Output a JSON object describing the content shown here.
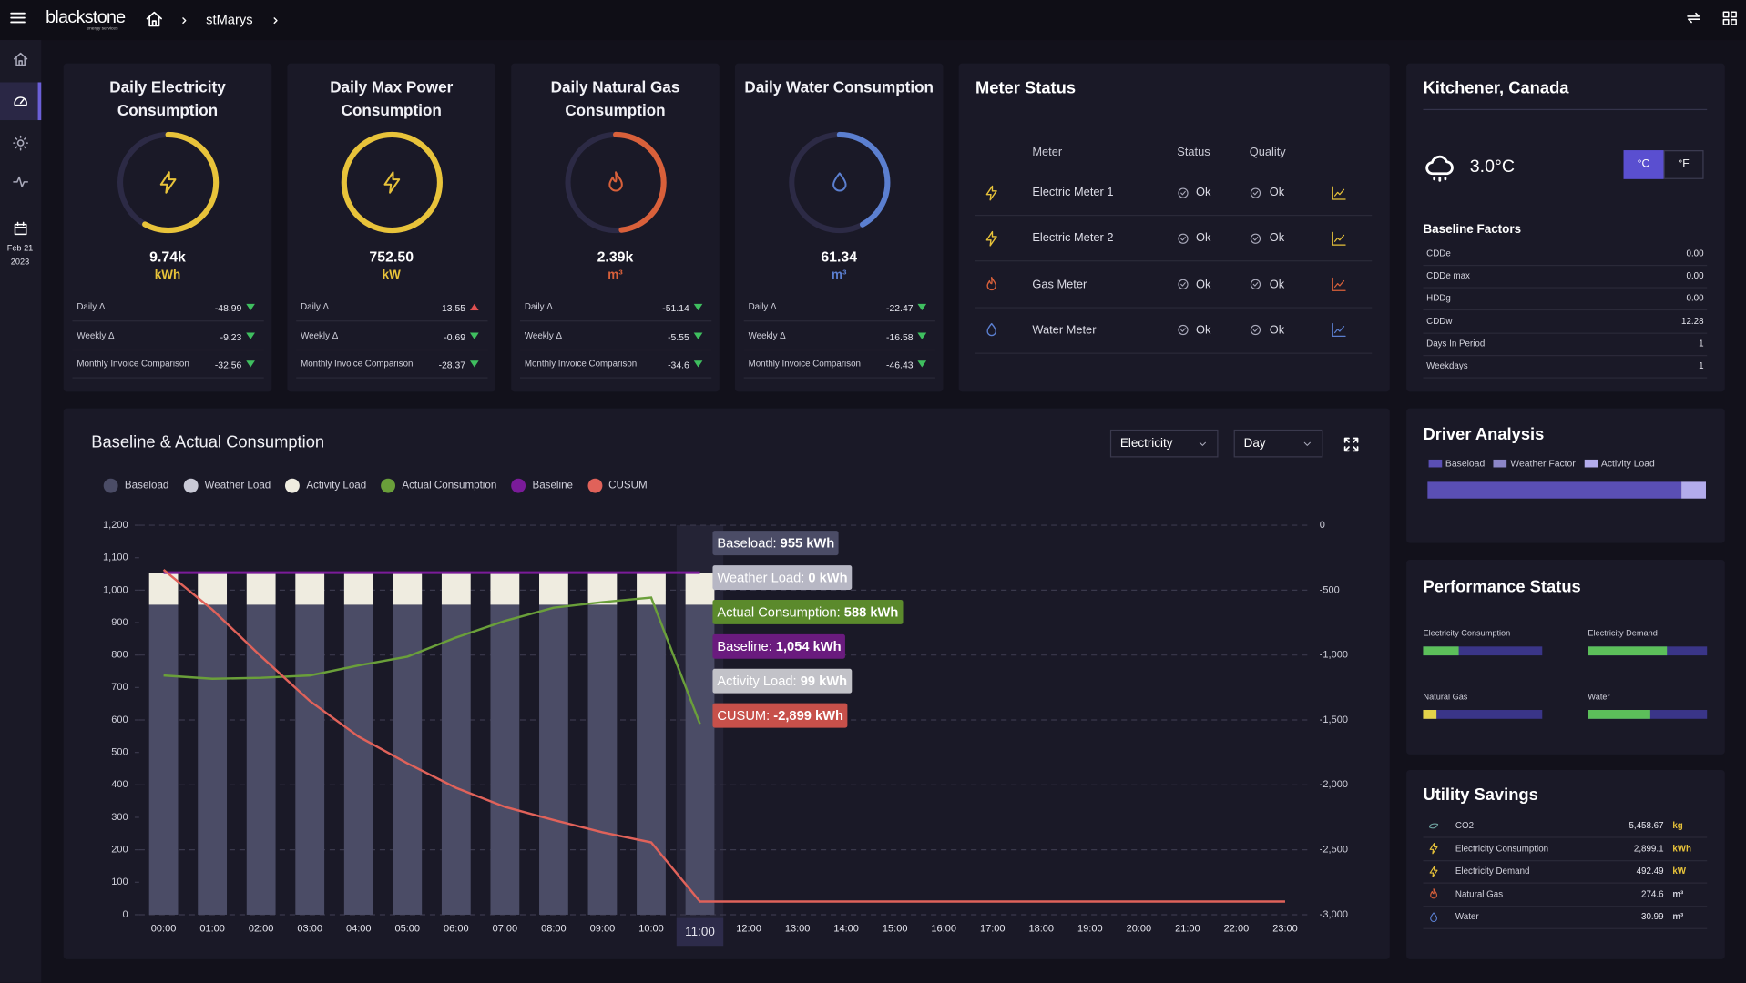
{
  "header": {
    "brand": "blackstone",
    "tagline": "energy services",
    "breadcrumb": "stMarys"
  },
  "sidebar": {
    "date_day": "Feb 21",
    "date_year": "2023"
  },
  "kpis": [
    {
      "title": "Daily Electricity Consumption",
      "value": "9.74k",
      "unit": "kWh",
      "gauge": 58,
      "rows": [
        {
          "label": "Daily Δ",
          "value": -48.99
        },
        {
          "label": "Weekly Δ",
          "value": -9.23
        },
        {
          "label": "Monthly Invoice Comparison",
          "value": -32.56
        }
      ]
    },
    {
      "title": "Daily Max Power Consumption",
      "value": "752.50",
      "unit": "kW",
      "gauge": 100,
      "rows": [
        {
          "label": "Daily Δ",
          "value": 13.55
        },
        {
          "label": "Weekly Δ",
          "value": -0.69
        },
        {
          "label": "Monthly Invoice Comparison",
          "value": -28.37
        }
      ]
    },
    {
      "title": "Daily Natural Gas Consumption",
      "value": "2.39k",
      "unit": "m³",
      "gauge": 48,
      "rows": [
        {
          "label": "Daily Δ",
          "value": -51.14
        },
        {
          "label": "Weekly Δ",
          "value": -5.55
        },
        {
          "label": "Monthly Invoice Comparison",
          "value": -34.6
        }
      ]
    },
    {
      "title": "Daily Water Consumption",
      "value": "61.34",
      "unit": "m³",
      "gauge": 42,
      "rows": [
        {
          "label": "Daily Δ",
          "value": -22.47
        },
        {
          "label": "Weekly Δ",
          "value": -16.58
        },
        {
          "label": "Monthly Invoice Comparison",
          "value": -46.43
        }
      ]
    }
  ],
  "meter_status": {
    "title": "Meter Status",
    "columns": [
      "Meter",
      "Status",
      "Quality"
    ],
    "rows": [
      [
        "Electric Meter 1",
        "Ok",
        "Ok"
      ],
      [
        "Electric Meter 2",
        "Ok",
        "Ok"
      ],
      [
        "Gas Meter",
        "Ok",
        "Ok"
      ],
      [
        "Water Meter",
        "Ok",
        "Ok"
      ]
    ]
  },
  "weather": {
    "title": "Kitchener, Canada",
    "temperature": "3.0°C",
    "units": [
      "°C",
      "°F"
    ],
    "factors_title": "Baseline Factors",
    "factors": [
      [
        "CDDe",
        "0.00"
      ],
      [
        "CDDe max",
        "0.00"
      ],
      [
        "HDDg",
        "0.00"
      ],
      [
        "CDDw",
        "12.28"
      ],
      [
        "Days In Period",
        "1"
      ],
      [
        "Weekdays",
        "1"
      ]
    ]
  },
  "chart_data": {
    "type": "combo",
    "title": "Baseline & Actual Consumption",
    "controls": [
      "Electricity",
      "Day"
    ],
    "categories": [
      "00:00",
      "01:00",
      "02:00",
      "03:00",
      "04:00",
      "05:00",
      "06:00",
      "07:00",
      "08:00",
      "09:00",
      "10:00",
      "11:00",
      "12:00",
      "13:00",
      "14:00",
      "15:00",
      "16:00",
      "17:00",
      "18:00",
      "19:00",
      "20:00",
      "21:00",
      "22:00",
      "23:00"
    ],
    "series": [
      {
        "name": "Baseload",
        "type": "bar",
        "color": "#4b4c66",
        "values": [
          955,
          955,
          955,
          955,
          955,
          955,
          955,
          955,
          955,
          955,
          955,
          955,
          null,
          null,
          null,
          null,
          null,
          null,
          null,
          null,
          null,
          null,
          null,
          null
        ]
      },
      {
        "name": "Weather Load",
        "type": "bar",
        "color": "#c9c9d6",
        "values": [
          0,
          0,
          0,
          0,
          0,
          0,
          0,
          0,
          0,
          0,
          0,
          0,
          null,
          null,
          null,
          null,
          null,
          null,
          null,
          null,
          null,
          null,
          null,
          null
        ]
      },
      {
        "name": "Activity Load",
        "type": "bar",
        "color": "#efece0",
        "values": [
          99,
          99,
          99,
          99,
          99,
          99,
          99,
          99,
          99,
          99,
          99,
          99,
          null,
          null,
          null,
          null,
          null,
          null,
          null,
          null,
          null,
          null,
          null,
          null
        ]
      },
      {
        "name": "Actual Consumption",
        "type": "line",
        "color": "#6a9f3a",
        "values": [
          737,
          727,
          730,
          737,
          768,
          795,
          854,
          905,
          946,
          963,
          977,
          588,
          null,
          null,
          null,
          null,
          null,
          null,
          null,
          null,
          null,
          null,
          null,
          null
        ]
      },
      {
        "name": "Baseline",
        "type": "line",
        "color": "#7a1b99",
        "values": [
          1054,
          1054,
          1054,
          1054,
          1054,
          1054,
          1054,
          1054,
          1054,
          1054,
          1054,
          1054,
          null,
          null,
          null,
          null,
          null,
          null,
          null,
          null,
          null,
          null,
          null,
          null
        ]
      },
      {
        "name": "CUSUM",
        "type": "line",
        "axis": "y2",
        "color": "#e0625a",
        "values": [
          -343,
          -651,
          -1011,
          -1354,
          -1629,
          -1834,
          -2023,
          -2169,
          -2271,
          -2366,
          -2443,
          -2899,
          -2899,
          -2899,
          -2899,
          -2899,
          -2899,
          -2899,
          -2899,
          -2899,
          -2899,
          -2899,
          -2899,
          -2899
        ]
      }
    ],
    "ylim": [
      0,
      1200
    ],
    "yticks": [
      0,
      100,
      200,
      300,
      400,
      500,
      600,
      700,
      800,
      900,
      {
        "value": 1000,
        "label": "1,000"
      },
      {
        "value": 1100,
        "label": "1,100"
      },
      {
        "value": 1200,
        "label": "1,200"
      }
    ],
    "y2lim": [
      -3000,
      0
    ],
    "y2ticks": [
      0,
      -500,
      {
        "value": -1000,
        "label": "-1,000"
      },
      {
        "value": -1500,
        "label": "-1,500"
      },
      {
        "value": -2000,
        "label": "-2,000"
      },
      {
        "value": -2500,
        "label": "-2,500"
      },
      {
        "value": -3000,
        "label": "-3,000"
      }
    ],
    "grid": true,
    "highlight": 11,
    "tooltip": [
      {
        "label": "Baseload:",
        "value": "955 kWh"
      },
      {
        "label": "Weather Load:",
        "value": "0 kWh"
      },
      {
        "label": "Actual Consumption:",
        "value": "588 kWh"
      },
      {
        "label": "Baseline:",
        "value": "1,054 kWh"
      },
      {
        "label": "Activity Load:",
        "value": "99 kWh"
      },
      {
        "label": "CUSUM:",
        "value": "-2,899 kWh"
      }
    ]
  },
  "driver_analysis": {
    "title": "Driver Analysis",
    "legend": [
      "Baseload",
      "Weather Factor",
      "Activity Load"
    ],
    "values": [
      91,
      0,
      9
    ],
    "colors": [
      "#5a4fb5",
      "#8c86c8",
      "#b3acec"
    ]
  },
  "performance_status": {
    "title": "Performance Status",
    "items": [
      {
        "label": "Electricity Consumption",
        "value": 30,
        "color": "#5cbf5a"
      },
      {
        "label": "Electricity Demand",
        "value": 66,
        "color": "#5cbf5a"
      },
      {
        "label": "Natural Gas",
        "value": 11,
        "color": "#e3d24a"
      },
      {
        "label": "Water",
        "value": 52,
        "color": "#5cbf5a"
      }
    ]
  },
  "utility_savings": {
    "title": "Utility Savings",
    "rows": [
      {
        "label": "CO2",
        "value": "5,458.67",
        "unit": "kg"
      },
      {
        "label": "Electricity Consumption",
        "value": "2,899.1",
        "unit": "kWh"
      },
      {
        "label": "Electricity Demand",
        "value": "492.49",
        "unit": "kW"
      },
      {
        "label": "Natural Gas",
        "value": "274.6",
        "unit": "m³"
      },
      {
        "label": "Water",
        "value": "30.99",
        "unit": "m³"
      }
    ]
  }
}
